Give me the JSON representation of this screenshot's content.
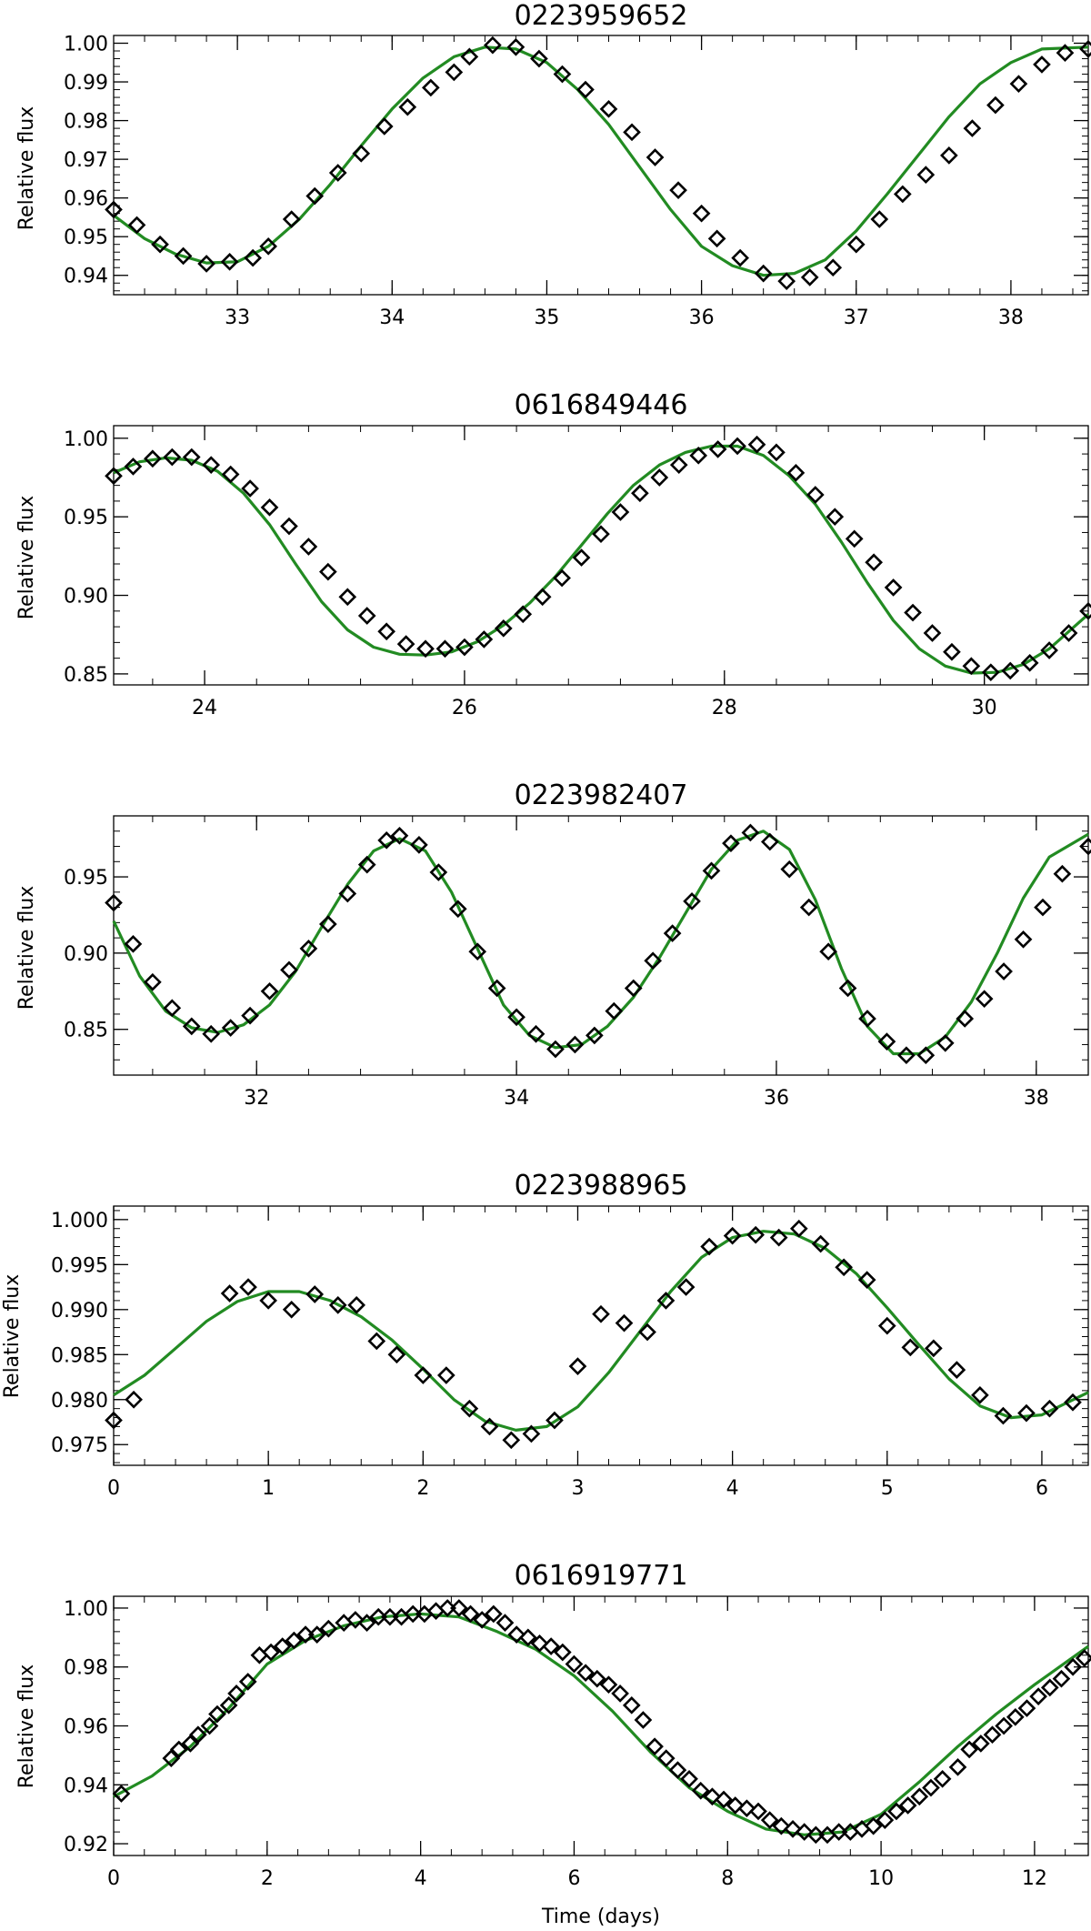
{
  "style": {
    "fit_color": "#228b22",
    "marker_color": "#000000"
  },
  "chart_data": [
    {
      "type": "line",
      "title": "0223959652",
      "xlabel": "",
      "ylabel": "Relative flux",
      "xlim": [
        32.2,
        38.5
      ],
      "ylim": [
        0.935,
        1.002
      ],
      "xticks": [
        33,
        34,
        35,
        36,
        37,
        38
      ],
      "xtick_labels": [
        "33",
        "34",
        "35",
        "36",
        "37",
        "38"
      ],
      "yticks": [
        0.94,
        0.95,
        0.96,
        0.97,
        0.98,
        0.99,
        1.0
      ],
      "ytick_labels": [
        "0.94",
        "0.95",
        "0.96",
        "0.97",
        "0.98",
        "0.99",
        "1.00"
      ],
      "fit": {
        "x": [
          32.2,
          32.4,
          32.6,
          32.8,
          33.0,
          33.2,
          33.4,
          33.6,
          33.8,
          34.0,
          34.2,
          34.4,
          34.6,
          34.8,
          35.0,
          35.2,
          35.4,
          35.6,
          35.8,
          36.0,
          36.2,
          36.4,
          36.6,
          36.8,
          37.0,
          37.2,
          37.4,
          37.6,
          37.8,
          38.0,
          38.2,
          38.5
        ],
        "y": [
          0.9555,
          0.9495,
          0.9455,
          0.9432,
          0.9435,
          0.9475,
          0.9545,
          0.9635,
          0.9735,
          0.983,
          0.991,
          0.9965,
          0.999,
          0.9985,
          0.995,
          0.988,
          0.979,
          0.968,
          0.957,
          0.9475,
          0.9425,
          0.94,
          0.9405,
          0.944,
          0.9515,
          0.961,
          0.971,
          0.981,
          0.9895,
          0.995,
          0.9985,
          0.999
        ]
      },
      "points": {
        "x": [
          32.2,
          32.35,
          32.5,
          32.65,
          32.8,
          32.95,
          33.1,
          33.2,
          33.35,
          33.5,
          33.65,
          33.8,
          33.95,
          34.1,
          34.25,
          34.4,
          34.5,
          34.65,
          34.8,
          34.95,
          35.1,
          35.25,
          35.4,
          35.55,
          35.7,
          35.85,
          36.0,
          36.1,
          36.25,
          36.4,
          36.55,
          36.7,
          36.85,
          37.0,
          37.15,
          37.3,
          37.45,
          37.6,
          37.75,
          37.9,
          38.05,
          38.2,
          38.35,
          38.5
        ],
        "y": [
          0.957,
          0.953,
          0.948,
          0.945,
          0.943,
          0.9435,
          0.9445,
          0.9475,
          0.9545,
          0.9605,
          0.9665,
          0.9715,
          0.9785,
          0.9835,
          0.9885,
          0.9925,
          0.9965,
          0.9995,
          0.999,
          0.996,
          0.992,
          0.988,
          0.983,
          0.977,
          0.9705,
          0.962,
          0.956,
          0.9495,
          0.9445,
          0.9405,
          0.9385,
          0.9395,
          0.942,
          0.948,
          0.9545,
          0.961,
          0.966,
          0.971,
          0.978,
          0.984,
          0.9895,
          0.9945,
          0.9975,
          0.9985
        ]
      }
    },
    {
      "type": "line",
      "title": "0616849446",
      "xlabel": "",
      "ylabel": "Relative flux",
      "xlim": [
        23.3,
        30.8
      ],
      "ylim": [
        0.843,
        1.008
      ],
      "xticks": [
        24,
        26,
        28,
        30
      ],
      "xtick_labels": [
        "24",
        "26",
        "28",
        "30"
      ],
      "yticks": [
        0.85,
        0.9,
        0.95,
        1.0
      ],
      "ytick_labels": [
        "0.85",
        "0.90",
        "0.95",
        "1.00"
      ],
      "fit": {
        "x": [
          23.3,
          23.5,
          23.7,
          23.9,
          24.1,
          24.3,
          24.5,
          24.7,
          24.9,
          25.1,
          25.3,
          25.5,
          25.7,
          25.9,
          26.1,
          26.3,
          26.5,
          26.7,
          26.9,
          27.1,
          27.3,
          27.5,
          27.7,
          27.9,
          28.1,
          28.3,
          28.5,
          28.7,
          28.9,
          29.1,
          29.3,
          29.5,
          29.7,
          29.9,
          30.1,
          30.3,
          30.5,
          30.8
        ],
        "y": [
          0.978,
          0.985,
          0.9875,
          0.986,
          0.979,
          0.965,
          0.945,
          0.92,
          0.896,
          0.878,
          0.867,
          0.8625,
          0.862,
          0.864,
          0.8705,
          0.881,
          0.895,
          0.912,
          0.932,
          0.952,
          0.97,
          0.983,
          0.991,
          0.995,
          0.995,
          0.989,
          0.976,
          0.958,
          0.934,
          0.908,
          0.884,
          0.866,
          0.855,
          0.8505,
          0.851,
          0.856,
          0.866,
          0.888
        ]
      },
      "points": {
        "x": [
          23.3,
          23.45,
          23.6,
          23.75,
          23.9,
          24.05,
          24.2,
          24.35,
          24.5,
          24.65,
          24.8,
          24.95,
          25.1,
          25.25,
          25.4,
          25.55,
          25.7,
          25.85,
          26.0,
          26.15,
          26.3,
          26.45,
          26.6,
          26.75,
          26.9,
          27.05,
          27.2,
          27.35,
          27.5,
          27.65,
          27.8,
          27.95,
          28.1,
          28.25,
          28.4,
          28.55,
          28.7,
          28.85,
          29.0,
          29.15,
          29.3,
          29.45,
          29.6,
          29.75,
          29.9,
          30.05,
          30.2,
          30.35,
          30.5,
          30.65,
          30.8
        ],
        "y": [
          0.976,
          0.982,
          0.987,
          0.988,
          0.988,
          0.983,
          0.977,
          0.968,
          0.956,
          0.944,
          0.931,
          0.915,
          0.899,
          0.887,
          0.877,
          0.869,
          0.866,
          0.866,
          0.867,
          0.872,
          0.879,
          0.888,
          0.899,
          0.911,
          0.924,
          0.939,
          0.953,
          0.965,
          0.975,
          0.983,
          0.989,
          0.993,
          0.995,
          0.996,
          0.991,
          0.978,
          0.964,
          0.95,
          0.936,
          0.921,
          0.905,
          0.889,
          0.876,
          0.864,
          0.855,
          0.851,
          0.852,
          0.857,
          0.865,
          0.876,
          0.89
        ]
      }
    },
    {
      "type": "line",
      "title": "0223982407",
      "xlabel": "",
      "ylabel": "Relative flux",
      "xlim": [
        30.9,
        38.4
      ],
      "ylim": [
        0.82,
        0.99
      ],
      "xticks": [
        32,
        34,
        36,
        38
      ],
      "xtick_labels": [
        "32",
        "34",
        "36",
        "38"
      ],
      "yticks": [
        0.85,
        0.9,
        0.95
      ],
      "ytick_labels": [
        "0.85",
        "0.90",
        "0.95"
      ],
      "fit": {
        "x": [
          30.9,
          31.1,
          31.3,
          31.5,
          31.7,
          31.9,
          32.1,
          32.3,
          32.5,
          32.7,
          32.9,
          33.1,
          33.3,
          33.5,
          33.7,
          33.9,
          34.1,
          34.3,
          34.5,
          34.7,
          34.9,
          35.1,
          35.3,
          35.5,
          35.7,
          35.9,
          36.1,
          36.3,
          36.5,
          36.7,
          36.9,
          37.1,
          37.3,
          37.5,
          37.7,
          37.9,
          38.1,
          38.4
        ],
        "y": [
          0.921,
          0.885,
          0.862,
          0.851,
          0.848,
          0.853,
          0.866,
          0.888,
          0.917,
          0.945,
          0.967,
          0.975,
          0.967,
          0.94,
          0.903,
          0.866,
          0.846,
          0.838,
          0.84,
          0.852,
          0.871,
          0.897,
          0.926,
          0.955,
          0.974,
          0.98,
          0.968,
          0.935,
          0.89,
          0.852,
          0.834,
          0.834,
          0.845,
          0.868,
          0.9,
          0.936,
          0.963,
          0.978
        ]
      },
      "points": {
        "x": [
          30.9,
          31.05,
          31.2,
          31.35,
          31.5,
          31.65,
          31.8,
          31.95,
          32.1,
          32.25,
          32.4,
          32.55,
          32.7,
          32.85,
          33.0,
          33.1,
          33.25,
          33.4,
          33.55,
          33.7,
          33.85,
          34.0,
          34.15,
          34.3,
          34.45,
          34.6,
          34.75,
          34.9,
          35.05,
          35.2,
          35.35,
          35.5,
          35.65,
          35.8,
          35.95,
          36.1,
          36.25,
          36.4,
          36.55,
          36.7,
          36.85,
          37.0,
          37.15,
          37.3,
          37.45,
          37.6,
          37.75,
          37.9,
          38.05,
          38.2,
          38.4
        ],
        "y": [
          0.933,
          0.906,
          0.881,
          0.864,
          0.852,
          0.847,
          0.851,
          0.859,
          0.875,
          0.889,
          0.903,
          0.919,
          0.939,
          0.958,
          0.974,
          0.977,
          0.971,
          0.953,
          0.929,
          0.901,
          0.877,
          0.858,
          0.847,
          0.837,
          0.84,
          0.846,
          0.862,
          0.877,
          0.895,
          0.913,
          0.934,
          0.954,
          0.972,
          0.979,
          0.973,
          0.955,
          0.93,
          0.901,
          0.877,
          0.857,
          0.842,
          0.833,
          0.833,
          0.841,
          0.857,
          0.87,
          0.888,
          0.909,
          0.93,
          0.952,
          0.97
        ]
      }
    },
    {
      "type": "line",
      "title": "0223988965",
      "xlabel": "",
      "ylabel": "Relative flux",
      "xlim": [
        0,
        6.3
      ],
      "ylim": [
        0.9727,
        1.0015
      ],
      "xticks": [
        0,
        1,
        2,
        3,
        4,
        5,
        6
      ],
      "xtick_labels": [
        "0",
        "1",
        "2",
        "3",
        "4",
        "5",
        "6"
      ],
      "yticks": [
        0.975,
        0.98,
        0.985,
        0.99,
        0.995,
        1.0
      ],
      "ytick_labels": [
        "0.975",
        "0.980",
        "0.985",
        "0.990",
        "0.995",
        "1.000"
      ],
      "fit": {
        "x": [
          0,
          0.2,
          0.4,
          0.6,
          0.8,
          1.0,
          1.2,
          1.4,
          1.6,
          1.8,
          2.0,
          2.2,
          2.4,
          2.6,
          2.8,
          3.0,
          3.2,
          3.4,
          3.6,
          3.8,
          4.0,
          4.2,
          4.4,
          4.6,
          4.8,
          5.0,
          5.2,
          5.4,
          5.6,
          5.8,
          6.0,
          6.3
        ],
        "y": [
          0.9805,
          0.9827,
          0.9857,
          0.9887,
          0.9909,
          0.992,
          0.992,
          0.991,
          0.9892,
          0.9866,
          0.9834,
          0.98,
          0.9776,
          0.9766,
          0.977,
          0.9792,
          0.983,
          0.9875,
          0.992,
          0.9958,
          0.998,
          0.9987,
          0.9984,
          0.9968,
          0.994,
          0.9902,
          0.9862,
          0.9823,
          0.9793,
          0.978,
          0.9783,
          0.9808
        ]
      },
      "points": {
        "x": [
          0.0,
          0.13,
          0.75,
          0.87,
          1.0,
          1.15,
          1.3,
          1.45,
          1.57,
          1.7,
          1.83,
          2.0,
          2.15,
          2.3,
          2.43,
          2.57,
          2.7,
          2.85,
          3.0,
          3.15,
          3.3,
          3.45,
          3.57,
          3.7,
          3.85,
          4.0,
          4.15,
          4.3,
          4.43,
          4.57,
          4.72,
          4.87,
          5.0,
          5.15,
          5.3,
          5.45,
          5.6,
          5.75,
          5.9,
          6.05,
          6.2
        ],
        "y": [
          0.9777,
          0.98,
          0.9918,
          0.9925,
          0.991,
          0.99,
          0.9917,
          0.9905,
          0.9905,
          0.9865,
          0.985,
          0.9827,
          0.9827,
          0.979,
          0.977,
          0.9755,
          0.9762,
          0.9777,
          0.9837,
          0.9895,
          0.9885,
          0.9875,
          0.991,
          0.9925,
          0.997,
          0.9982,
          0.9983,
          0.998,
          0.999,
          0.9973,
          0.9947,
          0.9933,
          0.9882,
          0.9858,
          0.9857,
          0.9833,
          0.9805,
          0.9782,
          0.9785,
          0.979,
          0.9797
        ]
      }
    },
    {
      "type": "line",
      "title": "0616919771",
      "xlabel": "Time (days)",
      "ylabel": "Relative flux",
      "xlim": [
        0,
        12.7
      ],
      "ylim": [
        0.916,
        1.004
      ],
      "xticks": [
        0,
        2,
        4,
        6,
        8,
        10,
        12
      ],
      "xtick_labels": [
        "0",
        "2",
        "4",
        "6",
        "8",
        "10",
        "12"
      ],
      "yticks": [
        0.92,
        0.94,
        0.96,
        0.98,
        1.0
      ],
      "ytick_labels": [
        "0.92",
        "0.94",
        "0.96",
        "0.98",
        "1.00"
      ],
      "fit": {
        "x": [
          0,
          0.5,
          1.0,
          1.5,
          2.0,
          2.5,
          3.0,
          3.5,
          4.0,
          4.5,
          5.0,
          5.5,
          6.0,
          6.5,
          7.0,
          7.5,
          8.0,
          8.5,
          9.0,
          9.5,
          10.0,
          10.5,
          11.0,
          11.5,
          12.0,
          12.7
        ],
        "y": [
          0.936,
          0.943,
          0.953,
          0.966,
          0.981,
          0.989,
          0.994,
          0.997,
          0.998,
          0.997,
          0.992,
          0.986,
          0.977,
          0.965,
          0.951,
          0.939,
          0.931,
          0.925,
          0.923,
          0.924,
          0.93,
          0.941,
          0.953,
          0.964,
          0.974,
          0.987
        ]
      },
      "points": {
        "x": [
          0.1,
          0.75,
          0.85,
          1.0,
          1.1,
          1.25,
          1.35,
          1.5,
          1.6,
          1.75,
          1.9,
          2.05,
          2.2,
          2.35,
          2.5,
          2.65,
          2.8,
          3.0,
          3.15,
          3.3,
          3.45,
          3.6,
          3.75,
          3.9,
          4.05,
          4.2,
          4.35,
          4.5,
          4.65,
          4.8,
          4.95,
          5.1,
          5.25,
          5.4,
          5.55,
          5.7,
          5.85,
          6.0,
          6.15,
          6.3,
          6.45,
          6.6,
          6.75,
          6.9,
          7.05,
          7.2,
          7.35,
          7.5,
          7.65,
          7.8,
          7.95,
          8.1,
          8.25,
          8.4,
          8.55,
          8.7,
          8.85,
          9.0,
          9.15,
          9.3,
          9.45,
          9.6,
          9.75,
          9.9,
          10.05,
          10.2,
          10.35,
          10.5,
          10.65,
          10.8,
          11.0,
          11.15,
          11.3,
          11.45,
          11.6,
          11.75,
          11.9,
          12.05,
          12.2,
          12.35,
          12.5,
          12.65
        ],
        "y": [
          0.937,
          0.949,
          0.952,
          0.954,
          0.957,
          0.96,
          0.964,
          0.967,
          0.971,
          0.975,
          0.984,
          0.985,
          0.987,
          0.989,
          0.991,
          0.991,
          0.993,
          0.995,
          0.996,
          0.995,
          0.997,
          0.997,
          0.997,
          0.998,
          0.998,
          0.999,
          1.0,
          1.0,
          0.998,
          0.996,
          0.998,
          0.995,
          0.991,
          0.99,
          0.988,
          0.987,
          0.985,
          0.981,
          0.978,
          0.976,
          0.974,
          0.971,
          0.967,
          0.962,
          0.953,
          0.949,
          0.945,
          0.942,
          0.938,
          0.936,
          0.935,
          0.933,
          0.932,
          0.931,
          0.928,
          0.926,
          0.925,
          0.924,
          0.923,
          0.923,
          0.924,
          0.924,
          0.925,
          0.926,
          0.928,
          0.931,
          0.933,
          0.936,
          0.939,
          0.942,
          0.946,
          0.952,
          0.954,
          0.957,
          0.96,
          0.963,
          0.966,
          0.97,
          0.973,
          0.976,
          0.98,
          0.983
        ]
      }
    }
  ]
}
